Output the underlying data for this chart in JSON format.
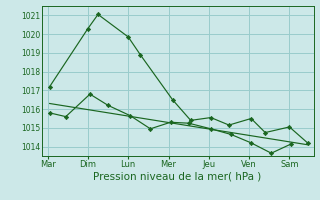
{
  "background_color": "#cce8e8",
  "grid_color": "#99cccc",
  "line_color": "#1a6620",
  "xlabel": "Pression niveau de la mer( hPa )",
  "xlabel_fontsize": 7.5,
  "ylim": [
    1013.5,
    1021.5
  ],
  "yticks": [
    1014,
    1015,
    1016,
    1017,
    1018,
    1019,
    1020,
    1021
  ],
  "x_labels": [
    "Mar",
    "Dim",
    "Lun",
    "Mer",
    "Jeu",
    "Ven",
    "Sam"
  ],
  "x_tick_pos": [
    0,
    1,
    2,
    3,
    4,
    5,
    6
  ],
  "xlim": [
    -0.15,
    6.6
  ],
  "series1_x": [
    0.05,
    1.0,
    1.25,
    2.0,
    2.3,
    3.1,
    3.55,
    4.05,
    4.5,
    5.05,
    5.4,
    6.0,
    6.45
  ],
  "series1_y": [
    1017.2,
    1020.3,
    1021.05,
    1019.85,
    1018.9,
    1016.5,
    1015.4,
    1015.55,
    1015.15,
    1015.5,
    1014.75,
    1015.05,
    1014.2
  ],
  "series2_x": [
    0.05,
    0.45,
    1.05,
    1.5,
    2.05,
    2.55,
    3.05,
    3.5,
    4.05,
    4.55,
    5.05,
    5.55,
    6.05
  ],
  "series2_y": [
    1015.8,
    1015.6,
    1016.8,
    1016.2,
    1015.65,
    1014.95,
    1015.3,
    1015.25,
    1014.95,
    1014.65,
    1014.2,
    1013.65,
    1014.15
  ],
  "trend_x": [
    0.05,
    6.45
  ],
  "trend_y": [
    1016.3,
    1014.1
  ],
  "figsize": [
    3.2,
    2.0
  ],
  "dpi": 100
}
